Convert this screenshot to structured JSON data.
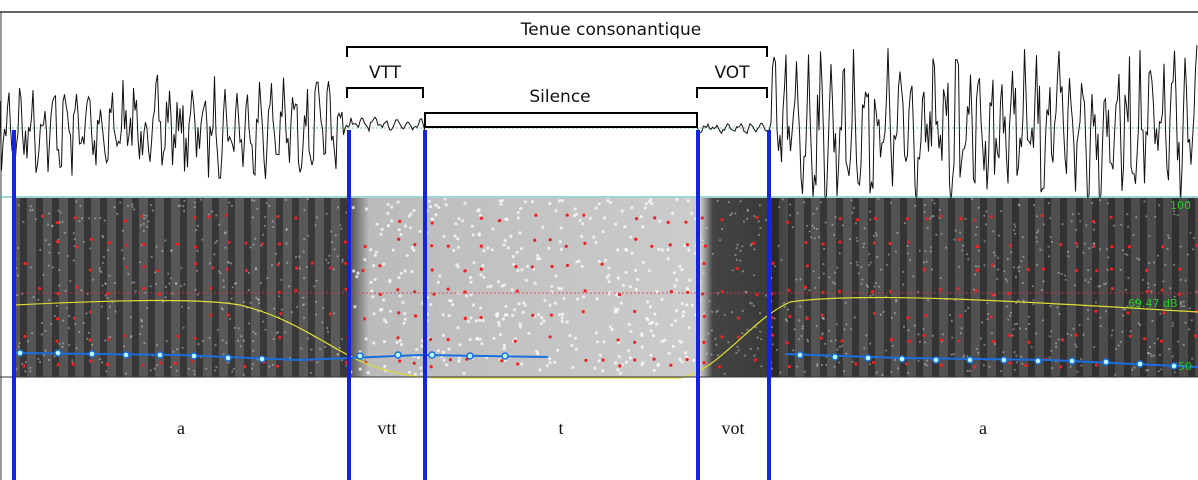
{
  "annotations": {
    "span": "Tenue consonantique",
    "vtt": "VTT",
    "silence": "Silence",
    "vot": "VOT"
  },
  "spectrogram_labels": {
    "top": "100",
    "middle": "69.47 dB",
    "bottom": "50"
  },
  "tier": {
    "intervals": [
      "a",
      "vtt",
      "t",
      "vot",
      "a"
    ]
  }
}
